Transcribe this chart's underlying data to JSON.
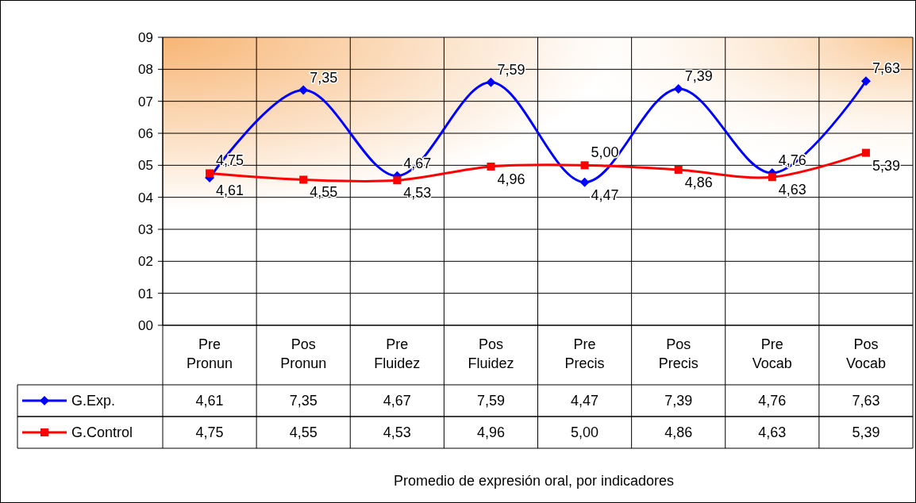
{
  "chart_data": {
    "type": "line",
    "annotations": [
      "Promedio de expresión oral, por indicadores"
    ],
    "categories": [
      "Pre Pronun",
      "Pos Pronun",
      "Pre Fluidez",
      "Pos Fluidez",
      "Pre Precis",
      "Pos Precis",
      "Pre Vocab",
      "Pos Vocab"
    ],
    "series": [
      {
        "name": "G.Exp.",
        "color": "#0000ff",
        "marker": "diamond",
        "values": [
          4.61,
          7.35,
          4.67,
          7.59,
          4.47,
          7.39,
          4.76,
          7.63
        ],
        "value_labels": [
          "4,61",
          "7,35",
          "4,67",
          "7,59",
          "4,47",
          "7,39",
          "4,76",
          "7,63"
        ]
      },
      {
        "name": "G.Control",
        "color": "#ff0000",
        "marker": "square",
        "values": [
          4.75,
          4.55,
          4.53,
          4.96,
          5.0,
          4.86,
          4.63,
          5.39
        ],
        "value_labels": [
          "4,75",
          "4,55",
          "4,53",
          "4,96",
          "5,00",
          "4,86",
          "4,63",
          "5,39"
        ]
      }
    ],
    "ylim": [
      0,
      9
    ],
    "yticks": [
      {
        "value": 0,
        "label": "00"
      },
      {
        "value": 1,
        "label": "01"
      },
      {
        "value": 2,
        "label": "02"
      },
      {
        "value": 3,
        "label": "03"
      },
      {
        "value": 4,
        "label": "04"
      },
      {
        "value": 5,
        "label": "05"
      },
      {
        "value": 6,
        "label": "06"
      },
      {
        "value": 7,
        "label": "07"
      },
      {
        "value": 8,
        "label": "08"
      },
      {
        "value": 9,
        "label": "09"
      }
    ],
    "grid": "y",
    "legend": "bottom",
    "line_style": "solid"
  }
}
